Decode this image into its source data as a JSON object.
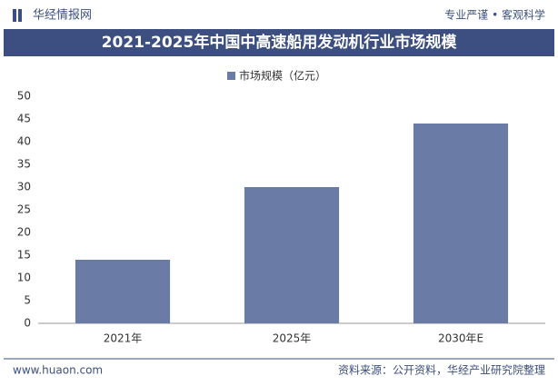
{
  "header": {
    "logo": "华经情报网",
    "slogan": "专业严谨 • 客观科学"
  },
  "chart_data": {
    "type": "bar",
    "title": "2021-2025年中国中高速船用发动机行业市场规模",
    "categories": [
      "2021年",
      "2025年",
      "2030年E"
    ],
    "series": [
      {
        "name": "市场规模（亿元）",
        "color": "#6a7ba6",
        "values": [
          14,
          30,
          44
        ]
      }
    ],
    "ylim": [
      0,
      50
    ],
    "yticks": [
      0,
      5,
      10,
      15,
      20,
      25,
      30,
      35,
      40,
      45,
      50
    ],
    "grid": false
  },
  "footer": {
    "website": "www.huaon.com",
    "source": "资料来源：公开资料，华经产业研究院整理"
  }
}
